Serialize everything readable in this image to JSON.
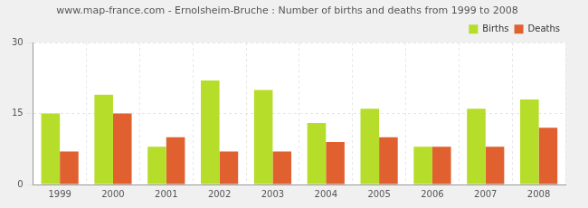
{
  "chart_data": {
    "type": "bar",
    "title": "www.map-france.com - Ernolsheim-Bruche : Number of births and deaths from 1999 to 2008",
    "categories": [
      "1999",
      "2000",
      "2001",
      "2002",
      "2003",
      "2004",
      "2005",
      "2006",
      "2007",
      "2008"
    ],
    "series": [
      {
        "name": "Births",
        "color": "#b5dd2a",
        "values": [
          15,
          19,
          8,
          22,
          20,
          13,
          16,
          8,
          16,
          18
        ]
      },
      {
        "name": "Deaths",
        "color": "#e0602f",
        "values": [
          7,
          15,
          10,
          7,
          7,
          9,
          10,
          8,
          8,
          12
        ]
      }
    ],
    "ylim": [
      0,
      30
    ],
    "yticks": [
      0,
      15,
      30
    ],
    "grid": true,
    "legend": "top right"
  }
}
